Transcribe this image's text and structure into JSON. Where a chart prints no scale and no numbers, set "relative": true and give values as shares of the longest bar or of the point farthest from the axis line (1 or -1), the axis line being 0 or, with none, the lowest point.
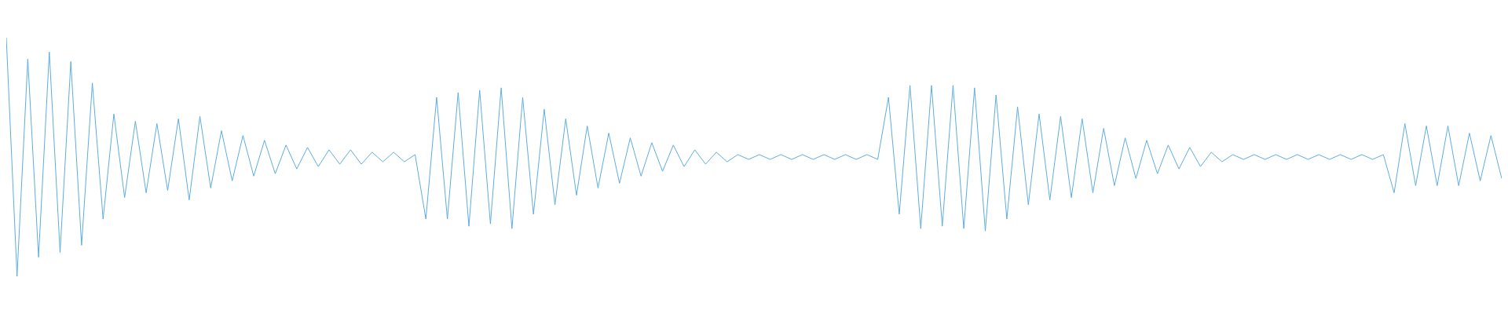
{
  "chart_data": {
    "type": "line",
    "relative": true,
    "legend": false,
    "marker": "none",
    "line_style": "solid",
    "categories": [
      null,
      null,
      null,
      null,
      null,
      null,
      null,
      null,
      null,
      null,
      null,
      null,
      null,
      null,
      null,
      null,
      null,
      null,
      null,
      null,
      null,
      null,
      null,
      null,
      null,
      null,
      null,
      null,
      null,
      null,
      null,
      null,
      null,
      null,
      null,
      null,
      null,
      null,
      null,
      null,
      null,
      null,
      null,
      null,
      null,
      null,
      null,
      null,
      null,
      null,
      null,
      null,
      null,
      null,
      null,
      null,
      null,
      null,
      null,
      null,
      null,
      null,
      null,
      null,
      null,
      null,
      null,
      null,
      null,
      null,
      null,
      null,
      null,
      null,
      null,
      null,
      null,
      null,
      null,
      null,
      null,
      null,
      null,
      null,
      null,
      null,
      null,
      null,
      null,
      null,
      null,
      null,
      null,
      null,
      null,
      null,
      null,
      null,
      null,
      null,
      null,
      null,
      null,
      null,
      null,
      null,
      null,
      null,
      null,
      null,
      null,
      null,
      null,
      null,
      null,
      null,
      null,
      null,
      null,
      null,
      null,
      null,
      null,
      null,
      null,
      null,
      null,
      null,
      null,
      null,
      null,
      null,
      null,
      null,
      null,
      null,
      null,
      null,
      null,
      null
    ],
    "series": [
      {
        "color": "#5dade2",
        "values": [
          1.0,
          0.0,
          0.91,
          0.08,
          0.94,
          0.1,
          0.9,
          0.13,
          0.81,
          0.24,
          0.68,
          0.33,
          0.65,
          0.35,
          0.64,
          0.36,
          0.66,
          0.32,
          0.67,
          0.37,
          0.61,
          0.4,
          0.59,
          0.42,
          0.57,
          0.43,
          0.55,
          0.45,
          0.54,
          0.46,
          0.53,
          0.47,
          0.53,
          0.47,
          0.52,
          0.48,
          0.52,
          0.48,
          0.51,
          0.24,
          0.75,
          0.24,
          0.77,
          0.21,
          0.78,
          0.22,
          0.79,
          0.2,
          0.75,
          0.26,
          0.7,
          0.3,
          0.66,
          0.34,
          0.63,
          0.37,
          0.6,
          0.39,
          0.58,
          0.42,
          0.56,
          0.44,
          0.55,
          0.46,
          0.53,
          0.47,
          0.52,
          0.48,
          0.51,
          0.49,
          0.51,
          0.49,
          0.51,
          0.49,
          0.51,
          0.49,
          0.51,
          0.49,
          0.51,
          0.49,
          0.51,
          0.49,
          0.75,
          0.26,
          0.8,
          0.2,
          0.8,
          0.21,
          0.8,
          0.2,
          0.79,
          0.19,
          0.76,
          0.24,
          0.71,
          0.3,
          0.68,
          0.32,
          0.67,
          0.33,
          0.66,
          0.35,
          0.62,
          0.38,
          0.58,
          0.41,
          0.57,
          0.43,
          0.55,
          0.45,
          0.54,
          0.46,
          0.52,
          0.48,
          0.51,
          0.49,
          0.51,
          0.49,
          0.51,
          0.49,
          0.51,
          0.49,
          0.51,
          0.49,
          0.51,
          0.49,
          0.51,
          0.49,
          0.51,
          0.35,
          0.64,
          0.38,
          0.63,
          0.38,
          0.63,
          0.38,
          0.6,
          0.4,
          0.59,
          0.41
        ]
      }
    ]
  }
}
